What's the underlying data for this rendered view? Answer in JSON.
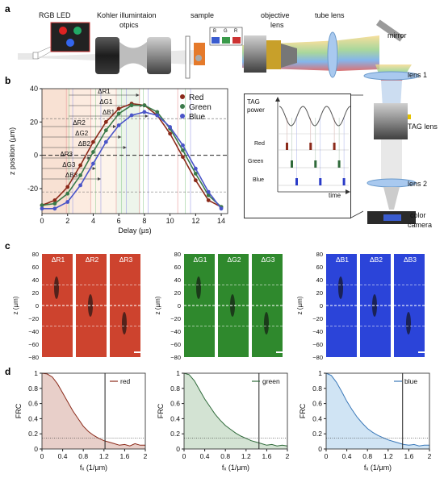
{
  "panels": {
    "a": "a",
    "b": "b",
    "c": "c",
    "d": "d"
  },
  "setup": {
    "rgb_led": "RGB LED",
    "kohler": "Kohler illumintaion",
    "kohler2": "otpics",
    "sample": "sample",
    "objective": "objective",
    "objective2": "lens",
    "tube_lens": "tube lens",
    "mirror": "mirror",
    "lens1": "lens 1",
    "tag_lens": "TAG lens",
    "lens2": "lens 2",
    "camera": "color",
    "camera2": "camera",
    "bgr": [
      "B",
      "G",
      "R"
    ]
  },
  "timing": {
    "tag_power": "TAG",
    "tag_power2": "power",
    "rows": [
      "Red",
      "Green",
      "Blue"
    ],
    "time": "time"
  },
  "chart_data": [
    {
      "type": "scatter",
      "xlabel": "Delay (µs)",
      "ylabel": "z position (µm)",
      "xlim": [
        0,
        14.5
      ],
      "ylim": [
        -35,
        40
      ],
      "xticks": [
        "0",
        "2",
        "4",
        "6",
        "8",
        "10",
        "12",
        "14"
      ],
      "yticks": [
        "40",
        "20",
        "0",
        "-20"
      ],
      "legend": [
        "Red",
        "Green",
        "Blue"
      ],
      "deltas": [
        "ΔR1",
        "ΔG1",
        "ΔB1",
        "ΔR2",
        "ΔG2",
        "ΔB2",
        "ΔR3",
        "ΔG3",
        "ΔB3"
      ],
      "series": [
        {
          "name": "Red",
          "color": "#8b2a1a",
          "peak_x": 7.6,
          "peak_y": 31,
          "x": [
            0,
            1,
            2,
            3,
            4,
            5,
            6,
            7,
            8,
            9,
            10,
            11,
            12,
            13,
            14
          ],
          "y": [
            -30,
            -27,
            -19,
            -6,
            8,
            20,
            28,
            31,
            30,
            24,
            13,
            -1,
            -15,
            -27,
            -31
          ]
        },
        {
          "name": "Green",
          "color": "#3a7a4a",
          "peak_x": 7.9,
          "peak_y": 30,
          "x": [
            0,
            1,
            2,
            3,
            4,
            5,
            6,
            7,
            8,
            9,
            10,
            11,
            12,
            13,
            14
          ],
          "y": [
            -30,
            -29,
            -23,
            -12,
            2,
            15,
            25,
            30,
            30,
            26,
            16,
            3,
            -11,
            -24,
            -31
          ]
        },
        {
          "name": "Blue",
          "color": "#4a55c8",
          "peak_x": 8.3,
          "peak_y": 26,
          "x": [
            0,
            1,
            2,
            3,
            4,
            5,
            6,
            7,
            8,
            9,
            10,
            11,
            12,
            13,
            14
          ],
          "y": [
            -32,
            -32,
            -28,
            -18,
            -5,
            8,
            18,
            24,
            26,
            24,
            17,
            6,
            -8,
            -22,
            -32
          ]
        }
      ]
    },
    {
      "type": "line",
      "xlabel": "fₓ (1/µm)",
      "ylabel": "FRC",
      "xticks": [
        "0",
        "0.4",
        "0.8",
        "1.2",
        "1.6",
        "2"
      ],
      "yticks": [
        "1",
        "0.8",
        "0.6",
        "0.4",
        "0.2",
        "0"
      ],
      "series": [
        {
          "name": "red",
          "color": "#8b2a1a",
          "fill": "#e8cfc9",
          "cutoff": 1.22,
          "x": [
            0,
            0.1,
            0.2,
            0.3,
            0.4,
            0.5,
            0.6,
            0.7,
            0.8,
            0.9,
            1.0,
            1.1,
            1.2,
            1.3,
            1.4,
            1.5,
            1.6,
            1.7,
            1.8,
            1.9,
            2.0
          ],
          "y": [
            1.0,
            0.99,
            0.95,
            0.86,
            0.74,
            0.62,
            0.5,
            0.4,
            0.3,
            0.23,
            0.18,
            0.14,
            0.11,
            0.09,
            0.07,
            0.05,
            0.06,
            0.04,
            0.07,
            0.05,
            0.05
          ]
        },
        {
          "name": "green",
          "color": "#2f6a3a",
          "fill": "#d3e3d3",
          "cutoff": 1.45,
          "x": [
            0,
            0.1,
            0.2,
            0.3,
            0.4,
            0.5,
            0.6,
            0.7,
            0.8,
            0.9,
            1.0,
            1.1,
            1.2,
            1.3,
            1.4,
            1.5,
            1.6,
            1.7,
            1.8,
            1.9,
            2.0
          ],
          "y": [
            1.0,
            0.98,
            0.9,
            0.78,
            0.66,
            0.56,
            0.46,
            0.38,
            0.31,
            0.26,
            0.21,
            0.17,
            0.14,
            0.11,
            0.09,
            0.07,
            0.05,
            0.06,
            0.04,
            0.05,
            0.04
          ]
        },
        {
          "name": "blue",
          "color": "#3a78b8",
          "fill": "#d0e4f4",
          "cutoff": 1.48,
          "x": [
            0,
            0.1,
            0.2,
            0.3,
            0.4,
            0.5,
            0.6,
            0.7,
            0.8,
            0.9,
            1.0,
            1.1,
            1.2,
            1.3,
            1.4,
            1.5,
            1.6,
            1.7,
            1.8,
            1.9,
            2.0
          ],
          "y": [
            1.0,
            0.97,
            0.88,
            0.76,
            0.63,
            0.52,
            0.42,
            0.34,
            0.27,
            0.22,
            0.18,
            0.15,
            0.12,
            0.1,
            0.08,
            0.06,
            0.05,
            0.06,
            0.04,
            0.05,
            0.05
          ]
        }
      ]
    },
    {
      "type": "image",
      "ylabel": "z (µm)",
      "yticks": [
        "80",
        "60",
        "40",
        "20",
        "0",
        "−20",
        "−40",
        "−60",
        "−80"
      ],
      "groups": [
        {
          "color": "red",
          "labels": [
            "ΔR1",
            "ΔR2",
            "ΔR3"
          ]
        },
        {
          "color": "green",
          "labels": [
            "ΔG1",
            "ΔG2",
            "ΔG3"
          ]
        },
        {
          "color": "blue",
          "labels": [
            "ΔB1",
            "ΔB2",
            "ΔB3"
          ]
        }
      ]
    }
  ]
}
